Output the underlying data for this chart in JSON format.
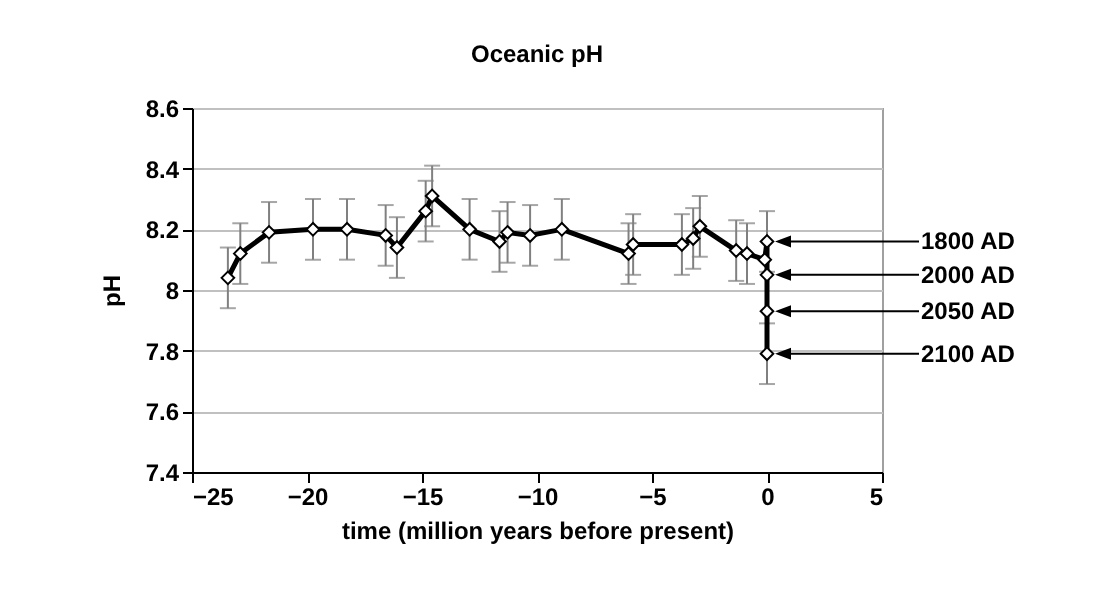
{
  "chart_data": {
    "type": "line",
    "title": "Oceanic pH",
    "xlabel": "time (million years before present)",
    "ylabel": "pH",
    "x": [
      -23.44,
      -22.9,
      -21.65,
      -19.74,
      -18.26,
      -16.58,
      -16.09,
      -14.84,
      -14.56,
      -12.93,
      -11.63,
      -11.28,
      -10.3,
      -8.92,
      -6.02,
      -5.82,
      -3.7,
      -3.21,
      -2.92,
      -1.34,
      -0.87,
      -0.1,
      0,
      0,
      0,
      0
    ],
    "series": [
      {
        "color": "#000000",
        "values": [
          8.04,
          8.12,
          8.19,
          8.2,
          8.2,
          8.18,
          8.14,
          8.26,
          8.31,
          8.2,
          8.16,
          8.19,
          8.18,
          8.2,
          8.12,
          8.15,
          8.15,
          8.17,
          8.21,
          8.13,
          8.12,
          8.1,
          8.16,
          8.05,
          7.93,
          7.79
        ],
        "errors": [
          0.1,
          0.1,
          0.1,
          0.1,
          0.1,
          0.1,
          0.1,
          0.1,
          0.1,
          0.1,
          0.1,
          0.1,
          0.1,
          0.1,
          0.1,
          0.1,
          0.1,
          0.1,
          0.1,
          0.1,
          0.1,
          null,
          0.1,
          null,
          null,
          0.1
        ]
      }
    ],
    "xlim": [
      -25,
      5
    ],
    "xticks": [
      -25,
      -20,
      -15,
      -10,
      -5,
      0,
      5
    ],
    "ylim": [
      7.4,
      8.6
    ],
    "yticks": [
      7.4,
      7.6,
      7.8,
      8,
      8.2,
      8.4,
      8.6
    ],
    "grid": "y",
    "marker": "diamond",
    "annotations": [
      "1800 AD",
      "2000 AD",
      "2050 AD",
      "2100 AD"
    ]
  }
}
